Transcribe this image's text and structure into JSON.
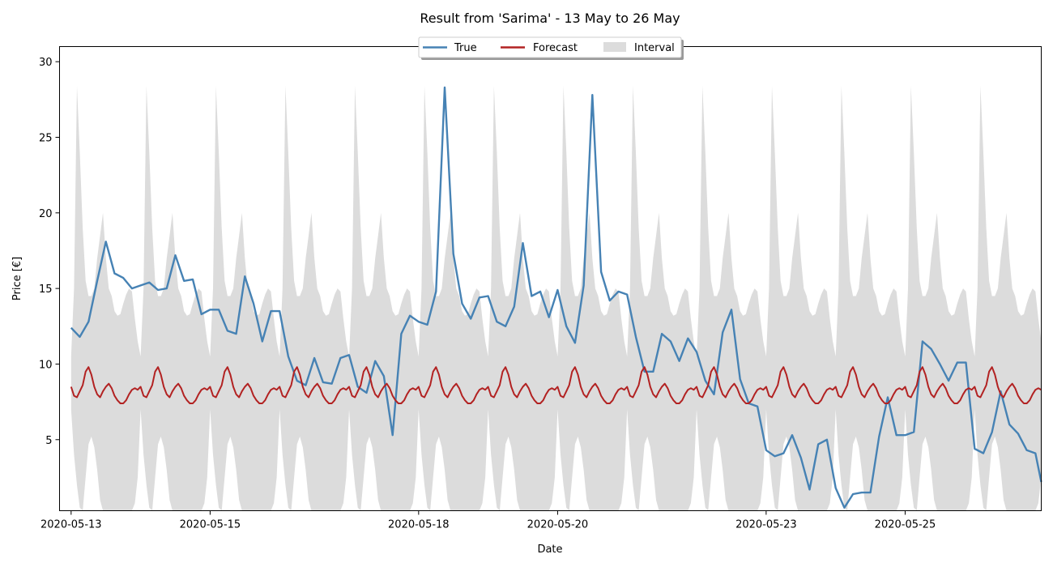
{
  "chart_data": {
    "type": "line",
    "title": "Result from 'Sarima' - 13 May to 26 May",
    "xlabel": "Date",
    "ylabel": "Price [€]",
    "x_range": [
      "2020-05-12T20:00",
      "2020-05-26T23:00"
    ],
    "ylim": [
      0.3,
      31
    ],
    "x_ticks": [
      {
        "label": "2020-05-13",
        "value": "2020-05-13T00:00"
      },
      {
        "label": "2020-05-15",
        "value": "2020-05-15T00:00"
      },
      {
        "label": "2020-05-18",
        "value": "2020-05-18T00:00"
      },
      {
        "label": "2020-05-20",
        "value": "2020-05-20T00:00"
      },
      {
        "label": "2020-05-23",
        "value": "2020-05-23T00:00"
      },
      {
        "label": "2020-05-25",
        "value": "2020-05-25T00:00"
      }
    ],
    "y_ticks": [
      5,
      10,
      15,
      20,
      25,
      30
    ],
    "grid": false,
    "legend_position": "top-center",
    "legend": [
      "True",
      "Forecast",
      "Interval"
    ],
    "colors": {
      "true": "#4682b4",
      "forecast": "#b22222",
      "interval": "#dcdcdc"
    },
    "series": [
      {
        "name": "True",
        "points": [
          [
            "2020-05-13T00:00",
            12.4
          ],
          [
            "2020-05-13T03:00",
            11.8
          ],
          [
            "2020-05-13T06:00",
            12.8
          ],
          [
            "2020-05-13T09:00",
            15.5
          ],
          [
            "2020-05-13T12:00",
            18.1
          ],
          [
            "2020-05-13T15:00",
            16.0
          ],
          [
            "2020-05-13T18:00",
            15.7
          ],
          [
            "2020-05-13T21:00",
            15.0
          ],
          [
            "2020-05-14T00:00",
            15.2
          ],
          [
            "2020-05-14T03:00",
            15.4
          ],
          [
            "2020-05-14T06:00",
            14.9
          ],
          [
            "2020-05-14T09:00",
            15.0
          ],
          [
            "2020-05-14T12:00",
            17.2
          ],
          [
            "2020-05-14T15:00",
            15.5
          ],
          [
            "2020-05-14T18:00",
            15.6
          ],
          [
            "2020-05-14T21:00",
            13.3
          ],
          [
            "2020-05-15T00:00",
            13.6
          ],
          [
            "2020-05-15T03:00",
            13.6
          ],
          [
            "2020-05-15T06:00",
            12.2
          ],
          [
            "2020-05-15T09:00",
            12.0
          ],
          [
            "2020-05-15T12:00",
            15.8
          ],
          [
            "2020-05-15T15:00",
            14.0
          ],
          [
            "2020-05-15T18:00",
            11.5
          ],
          [
            "2020-05-15T21:00",
            13.5
          ],
          [
            "2020-05-16T00:00",
            13.5
          ],
          [
            "2020-05-16T03:00",
            10.5
          ],
          [
            "2020-05-16T06:00",
            8.9
          ],
          [
            "2020-05-16T09:00",
            8.6
          ],
          [
            "2020-05-16T12:00",
            10.4
          ],
          [
            "2020-05-16T15:00",
            8.8
          ],
          [
            "2020-05-16T18:00",
            8.7
          ],
          [
            "2020-05-16T21:00",
            10.4
          ],
          [
            "2020-05-17T00:00",
            10.6
          ],
          [
            "2020-05-17T03:00",
            8.5
          ],
          [
            "2020-05-17T06:00",
            8.1
          ],
          [
            "2020-05-17T09:00",
            10.2
          ],
          [
            "2020-05-17T12:00",
            9.2
          ],
          [
            "2020-05-17T15:00",
            5.3
          ],
          [
            "2020-05-17T18:00",
            12.0
          ],
          [
            "2020-05-17T21:00",
            13.2
          ],
          [
            "2020-05-18T00:00",
            12.8
          ],
          [
            "2020-05-18T03:00",
            12.6
          ],
          [
            "2020-05-18T06:00",
            14.8
          ],
          [
            "2020-05-18T09:00",
            28.3
          ],
          [
            "2020-05-18T12:00",
            17.3
          ],
          [
            "2020-05-18T15:00",
            14.0
          ],
          [
            "2020-05-18T18:00",
            13.0
          ],
          [
            "2020-05-18T21:00",
            14.4
          ],
          [
            "2020-05-19T00:00",
            14.5
          ],
          [
            "2020-05-19T03:00",
            12.8
          ],
          [
            "2020-05-19T06:00",
            12.5
          ],
          [
            "2020-05-19T09:00",
            13.8
          ],
          [
            "2020-05-19T12:00",
            18.0
          ],
          [
            "2020-05-19T15:00",
            14.5
          ],
          [
            "2020-05-19T18:00",
            14.8
          ],
          [
            "2020-05-19T21:00",
            13.1
          ],
          [
            "2020-05-20T00:00",
            14.9
          ],
          [
            "2020-05-20T03:00",
            12.5
          ],
          [
            "2020-05-20T06:00",
            11.4
          ],
          [
            "2020-05-20T09:00",
            15.2
          ],
          [
            "2020-05-20T12:00",
            27.8
          ],
          [
            "2020-05-20T15:00",
            16.1
          ],
          [
            "2020-05-20T18:00",
            14.2
          ],
          [
            "2020-05-20T21:00",
            14.8
          ],
          [
            "2020-05-21T00:00",
            14.6
          ],
          [
            "2020-05-21T03:00",
            11.8
          ],
          [
            "2020-05-21T06:00",
            9.5
          ],
          [
            "2020-05-21T09:00",
            9.5
          ],
          [
            "2020-05-21T12:00",
            12.0
          ],
          [
            "2020-05-21T15:00",
            11.5
          ],
          [
            "2020-05-21T18:00",
            10.2
          ],
          [
            "2020-05-21T21:00",
            11.7
          ],
          [
            "2020-05-22T00:00",
            10.8
          ],
          [
            "2020-05-22T03:00",
            8.9
          ],
          [
            "2020-05-22T06:00",
            8.0
          ],
          [
            "2020-05-22T09:00",
            12.1
          ],
          [
            "2020-05-22T12:00",
            13.6
          ],
          [
            "2020-05-22T15:00",
            9.0
          ],
          [
            "2020-05-22T18:00",
            7.4
          ],
          [
            "2020-05-22T21:00",
            7.2
          ],
          [
            "2020-05-23T00:00",
            4.3
          ],
          [
            "2020-05-23T03:00",
            3.9
          ],
          [
            "2020-05-23T06:00",
            4.1
          ],
          [
            "2020-05-23T09:00",
            5.3
          ],
          [
            "2020-05-23T12:00",
            3.8
          ],
          [
            "2020-05-23T15:00",
            1.7
          ],
          [
            "2020-05-23T18:00",
            4.7
          ],
          [
            "2020-05-23T21:00",
            5.0
          ],
          [
            "2020-05-24T00:00",
            1.8
          ],
          [
            "2020-05-24T03:00",
            0.5
          ],
          [
            "2020-05-24T06:00",
            1.4
          ],
          [
            "2020-05-24T09:00",
            1.5
          ],
          [
            "2020-05-24T12:00",
            1.5
          ],
          [
            "2020-05-24T15:00",
            5.2
          ],
          [
            "2020-05-24T18:00",
            7.8
          ],
          [
            "2020-05-24T21:00",
            5.3
          ],
          [
            "2020-05-25T00:00",
            5.3
          ],
          [
            "2020-05-25T03:00",
            5.5
          ],
          [
            "2020-05-25T06:00",
            11.5
          ],
          [
            "2020-05-25T09:00",
            11.0
          ],
          [
            "2020-05-25T12:00",
            10.0
          ],
          [
            "2020-05-25T15:00",
            8.9
          ],
          [
            "2020-05-25T18:00",
            10.1
          ],
          [
            "2020-05-25T21:00",
            10.1
          ],
          [
            "2020-05-26T00:00",
            4.4
          ],
          [
            "2020-05-26T03:00",
            4.1
          ],
          [
            "2020-05-26T06:00",
            5.5
          ],
          [
            "2020-05-26T09:00",
            8.2
          ],
          [
            "2020-05-26T12:00",
            6.0
          ],
          [
            "2020-05-26T15:00",
            5.4
          ],
          [
            "2020-05-26T18:00",
            4.3
          ],
          [
            "2020-05-26T21:00",
            4.1
          ],
          [
            "2020-05-26T23:00",
            2.2
          ]
        ]
      },
      {
        "name": "Forecast",
        "daily_pattern": [
          8.5,
          7.9,
          7.8,
          8.2,
          8.6,
          9.5,
          9.8,
          9.3,
          8.5,
          8.0,
          7.8,
          8.2,
          8.5,
          8.7,
          8.4,
          7.9,
          7.6,
          7.4,
          7.4,
          7.6,
          8.0,
          8.3,
          8.4,
          8.3
        ],
        "start": "2020-05-13T00:00",
        "end": "2020-05-26T23:00",
        "interval_step_hours": 1
      },
      {
        "name": "Interval",
        "upper_daily_pattern": [
          10.5,
          15.0,
          28.4,
          24.0,
          19.0,
          15.5,
          14.5,
          14.5,
          15.0,
          17.0,
          18.5,
          20.0,
          17.0,
          15.0,
          14.5,
          13.5,
          13.2,
          13.3,
          14.0,
          14.6,
          15.0,
          14.8,
          13.0,
          11.5
        ],
        "lower_daily_pattern": [
          7.0,
          4.0,
          2.0,
          0.5,
          0.3,
          2.5,
          4.7,
          5.2,
          4.5,
          3.0,
          1.0,
          0.3,
          0.3,
          0.3,
          0.3,
          0.3,
          0.3,
          0.3,
          0.3,
          0.3,
          0.3,
          0.3,
          0.8,
          2.5
        ]
      }
    ]
  }
}
